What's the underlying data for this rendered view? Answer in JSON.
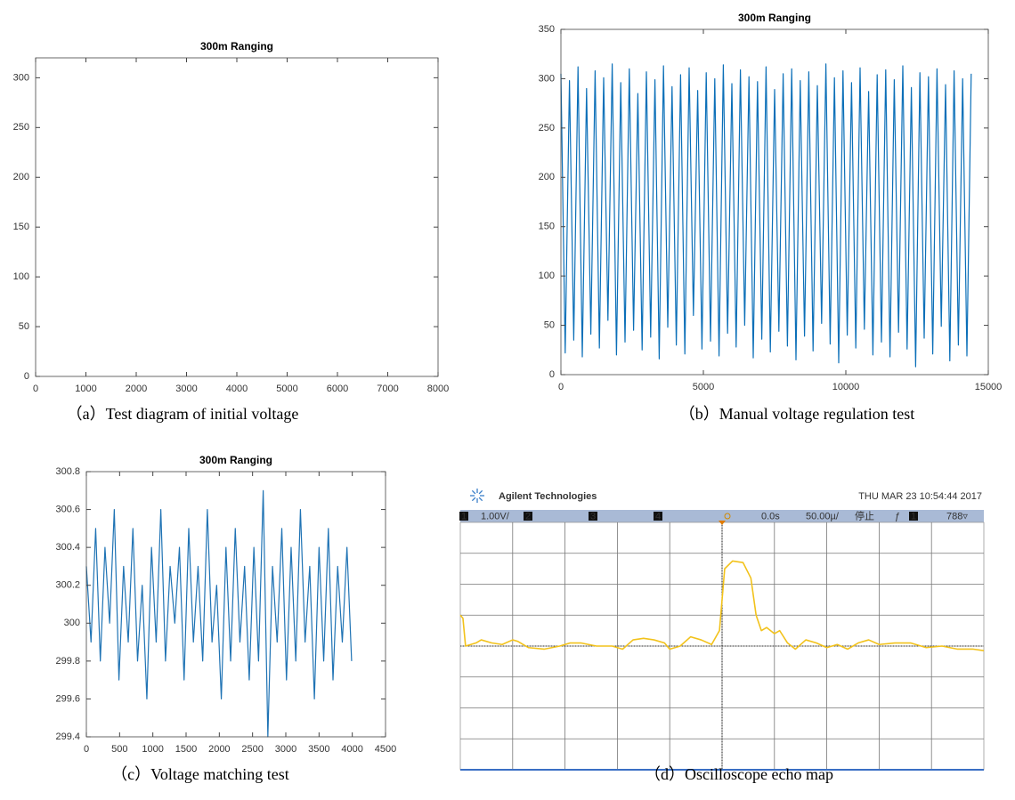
{
  "chart_data": [
    {
      "type": "line",
      "title": "300m Ranging",
      "caption": "（a）Test diagram of initial voltage",
      "xlim": [
        0,
        8000
      ],
      "xticks": [
        0,
        1000,
        2000,
        3000,
        4000,
        5000,
        6000,
        7000,
        8000
      ],
      "ylim": [
        0,
        320
      ],
      "yticks": [
        0,
        50,
        100,
        150,
        200,
        250,
        300
      ],
      "x": [],
      "values": [],
      "grid": false
    },
    {
      "type": "line",
      "title": "300m Ranging",
      "caption": "（b）Manual voltage regulation test",
      "xlim": [
        0,
        15000
      ],
      "xticks": [
        0,
        5000,
        10000,
        15000
      ],
      "ylim": [
        0,
        350
      ],
      "yticks": [
        0,
        50,
        100,
        150,
        200,
        250,
        300,
        350
      ],
      "color": "#0b6fb8",
      "grid": false,
      "x": [
        0,
        150,
        300,
        450,
        600,
        750,
        900,
        1050,
        1200,
        1350,
        1500,
        1650,
        1800,
        1950,
        2100,
        2250,
        2400,
        2550,
        2700,
        2850,
        3000,
        3150,
        3300,
        3450,
        3600,
        3750,
        3900,
        4050,
        4200,
        4350,
        4500,
        4650,
        4800,
        4950,
        5100,
        5250,
        5400,
        5550,
        5700,
        5850,
        6000,
        6150,
        6300,
        6450,
        6600,
        6750,
        6900,
        7050,
        7200,
        7350,
        7500,
        7650,
        7800,
        7950,
        8100,
        8250,
        8400,
        8550,
        8700,
        8850,
        9000,
        9150,
        9300,
        9450,
        9600,
        9750,
        9900,
        10050,
        10200,
        10350,
        10500,
        10650,
        10800,
        10950,
        11100,
        11250,
        11400,
        11550,
        11700,
        11850,
        12000,
        12150,
        12300,
        12450,
        12600,
        12750,
        12900,
        13050,
        13200,
        13350,
        13500,
        13650,
        13800,
        13950,
        14100,
        14250,
        14400
      ],
      "values": [
        305,
        22,
        298,
        35,
        312,
        18,
        290,
        41,
        308,
        27,
        301,
        55,
        315,
        20,
        296,
        33,
        310,
        45,
        285,
        25,
        307,
        38,
        299,
        16,
        313,
        48,
        292,
        30,
        304,
        21,
        311,
        60,
        288,
        26,
        306,
        34,
        300,
        19,
        314,
        42,
        295,
        28,
        309,
        50,
        302,
        17,
        297,
        36,
        312,
        23,
        289,
        44,
        305,
        29,
        310,
        15,
        298,
        39,
        307,
        24,
        293,
        52,
        315,
        31,
        301,
        12,
        308,
        40,
        296,
        27,
        311,
        46,
        287,
        20,
        304,
        33,
        309,
        18,
        299,
        43,
        313,
        26,
        291,
        8,
        306,
        37,
        302,
        21,
        310,
        49,
        294,
        14,
        308,
        30,
        300,
        19,
        305
      ]
    },
    {
      "type": "line",
      "title": "300m Ranging",
      "caption": "（c）Voltage matching test",
      "xlim": [
        0,
        4500
      ],
      "xticks": [
        0,
        500,
        1000,
        1500,
        2000,
        2500,
        3000,
        3500,
        4000,
        4500
      ],
      "ylim": [
        299.4,
        300.8
      ],
      "yticks": [
        299.4,
        299.6,
        299.8,
        300,
        300.2,
        300.4,
        300.6,
        300.8
      ],
      "color": "#1f73b4",
      "grid": false,
      "x": [
        0,
        70,
        140,
        210,
        280,
        350,
        420,
        490,
        560,
        630,
        700,
        770,
        840,
        910,
        980,
        1050,
        1120,
        1190,
        1260,
        1330,
        1400,
        1470,
        1540,
        1610,
        1680,
        1750,
        1820,
        1890,
        1960,
        2030,
        2100,
        2170,
        2240,
        2310,
        2380,
        2450,
        2520,
        2590,
        2660,
        2730,
        2800,
        2870,
        2940,
        3010,
        3080,
        3150,
        3220,
        3290,
        3360,
        3430,
        3500,
        3570,
        3640,
        3710,
        3780,
        3850,
        3920,
        3990
      ],
      "values": [
        300.3,
        299.9,
        300.5,
        299.8,
        300.4,
        300.0,
        300.6,
        299.7,
        300.3,
        299.9,
        300.5,
        299.8,
        300.2,
        299.6,
        300.4,
        299.9,
        300.6,
        299.8,
        300.3,
        300.0,
        300.4,
        299.7,
        300.5,
        299.9,
        300.3,
        299.8,
        300.6,
        299.9,
        300.2,
        299.6,
        300.4,
        299.8,
        300.5,
        299.9,
        300.3,
        299.7,
        300.4,
        299.8,
        300.7,
        299.4,
        300.3,
        299.9,
        300.5,
        299.7,
        300.4,
        299.8,
        300.6,
        299.9,
        300.3,
        299.6,
        300.4,
        299.8,
        300.5,
        299.7,
        300.3,
        299.9,
        300.4,
        299.8
      ]
    },
    {
      "type": "scope",
      "caption": "（d）Oscilloscope echo map",
      "brand": "Agilent Technologies",
      "timestamp": "THU MAR 23 10:54:44 2017",
      "status": [
        "1",
        "1.00V/",
        "2",
        "3",
        "4",
        "0.0s",
        "50.00µ/",
        "停止",
        "ƒ",
        "1",
        "788▿"
      ],
      "xlim": [
        0,
        10
      ],
      "ylim": [
        -4,
        4
      ],
      "color": "#f2c21b",
      "grid": true,
      "x": [
        0,
        0.05,
        0.1,
        0.3,
        0.4,
        0.6,
        0.8,
        1.0,
        1.1,
        1.3,
        1.6,
        1.9,
        2.1,
        2.3,
        2.6,
        2.9,
        3.1,
        3.3,
        3.5,
        3.7,
        3.9,
        4.0,
        4.2,
        4.4,
        4.6,
        4.8,
        4.95,
        5.05,
        5.2,
        5.4,
        5.55,
        5.65,
        5.75,
        5.85,
        6.0,
        6.1,
        6.25,
        6.4,
        6.6,
        6.8,
        7.0,
        7.2,
        7.4,
        7.6,
        7.8,
        8.0,
        8.3,
        8.6,
        8.9,
        9.2,
        9.5,
        9.8,
        10
      ],
      "values": [
        1.0,
        0.9,
        0,
        0.1,
        0.2,
        0.1,
        0.05,
        0.2,
        0.15,
        -0.05,
        -0.1,
        0,
        0.1,
        0.1,
        0,
        0,
        -0.1,
        0.2,
        0.25,
        0.2,
        0.1,
        -0.1,
        0,
        0.3,
        0.2,
        0.05,
        0.5,
        2.5,
        2.75,
        2.7,
        2.2,
        1.0,
        0.5,
        0.6,
        0.4,
        0.5,
        0.1,
        -0.1,
        0.2,
        0.1,
        -0.05,
        0.05,
        -0.1,
        0.1,
        0.2,
        0.05,
        0.1,
        0.1,
        -0.05,
        0,
        -0.1,
        -0.1,
        -0.15
      ]
    }
  ]
}
